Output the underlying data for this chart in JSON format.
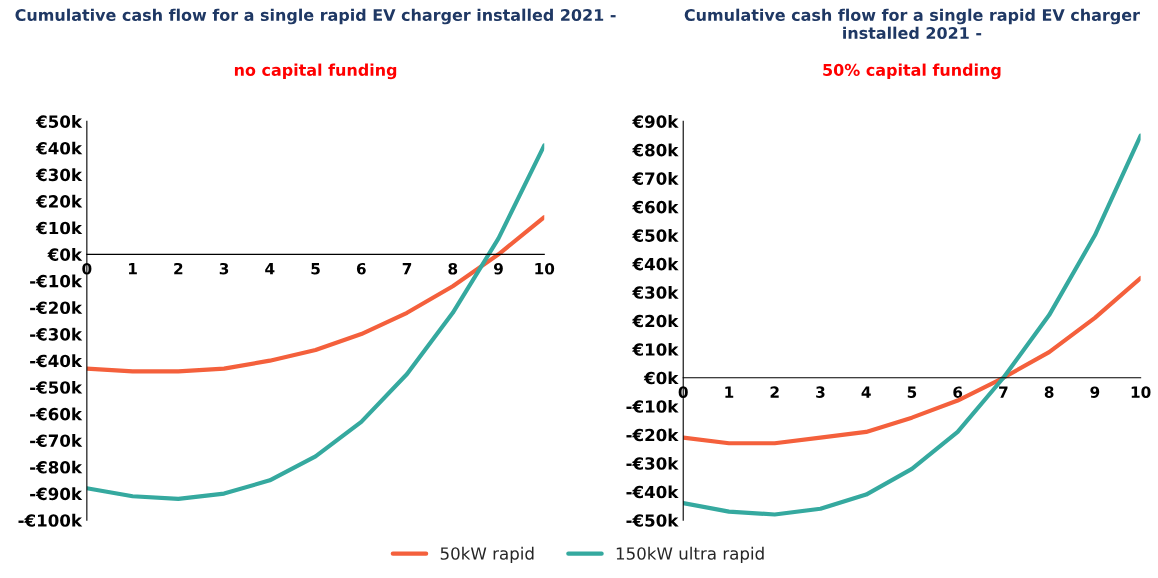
{
  "chart_data": [
    {
      "type": "line",
      "title": "Cumulative cash flow for a single rapid EV charger installed 2021 -",
      "subtitle": "no capital funding",
      "x": [
        0,
        1,
        2,
        3,
        4,
        5,
        6,
        7,
        8,
        9,
        10
      ],
      "series": [
        {
          "name": "50kW rapid",
          "color": "#f4603c",
          "values": [
            -43,
            -44,
            -44,
            -43,
            -40,
            -36,
            -30,
            -22,
            -12,
            0,
            14
          ]
        },
        {
          "name": "150kW ultra rapid",
          "color": "#35a99f",
          "values": [
            -88,
            -91,
            -92,
            -90,
            -85,
            -76,
            -63,
            -45,
            -22,
            6,
            41
          ]
        }
      ],
      "xlim": [
        0,
        10
      ],
      "xticks": [
        0,
        1,
        2,
        3,
        4,
        5,
        6,
        7,
        8,
        9,
        10
      ],
      "ylim": [
        -100,
        50
      ],
      "yticks": [
        {
          "value": 50,
          "label": "€50k"
        },
        {
          "value": 40,
          "label": "€40k"
        },
        {
          "value": 30,
          "label": "€30k"
        },
        {
          "value": 20,
          "label": "€20k"
        },
        {
          "value": 10,
          "label": "€10k"
        },
        {
          "value": 0,
          "label": "€0k"
        },
        {
          "value": -10,
          "label": "-€10k"
        },
        {
          "value": -20,
          "label": "-€20k"
        },
        {
          "value": -30,
          "label": "-€30k"
        },
        {
          "value": -40,
          "label": "-€40k"
        },
        {
          "value": -50,
          "label": "-€50k"
        },
        {
          "value": -60,
          "label": "-€60k"
        },
        {
          "value": -70,
          "label": "-€70k"
        },
        {
          "value": -80,
          "label": "-€80k"
        },
        {
          "value": -90,
          "label": "-€90k"
        },
        {
          "value": -100,
          "label": "-€100k"
        }
      ],
      "grid": false,
      "legend": "bottom",
      "marker": "none",
      "line_style": "solid"
    },
    {
      "type": "line",
      "title": "Cumulative cash flow for a single rapid EV charger installed 2021 -",
      "subtitle": "50% capital funding",
      "x": [
        0,
        1,
        2,
        3,
        4,
        5,
        6,
        7,
        8,
        9,
        10
      ],
      "series": [
        {
          "color": "#f4603c",
          "values": [
            -21,
            -23,
            -23,
            -21,
            -19,
            -14,
            -8,
            0,
            9,
            21,
            35
          ]
        },
        {
          "color": "#35a99f",
          "values": [
            -44,
            -47,
            -48,
            -46,
            -41,
            -32,
            -19,
            0,
            22,
            50,
            85
          ]
        }
      ],
      "xlim": [
        0,
        10
      ],
      "xticks": [
        0,
        1,
        2,
        3,
        4,
        5,
        6,
        7,
        8,
        9,
        10
      ],
      "ylim": [
        -50,
        90
      ],
      "yticks": [
        {
          "value": 90,
          "label": "€90k"
        },
        {
          "value": 80,
          "label": "€80k"
        },
        {
          "value": 70,
          "label": "€70k"
        },
        {
          "value": 60,
          "label": "€60k"
        },
        {
          "value": 50,
          "label": "€50k"
        },
        {
          "value": 40,
          "label": "€40k"
        },
        {
          "value": 30,
          "label": "€30k"
        },
        {
          "value": 20,
          "label": "€20k"
        },
        {
          "value": 10,
          "label": "€10k"
        },
        {
          "value": 0,
          "label": "€0k"
        },
        {
          "value": -10,
          "label": "-€10k"
        },
        {
          "value": -20,
          "label": "-€20k"
        },
        {
          "value": -30,
          "label": "-€30k"
        },
        {
          "value": -40,
          "label": "-€40k"
        },
        {
          "value": -50,
          "label": "-€50k"
        }
      ],
      "grid": false,
      "marker": "none",
      "line_style": "solid"
    }
  ]
}
